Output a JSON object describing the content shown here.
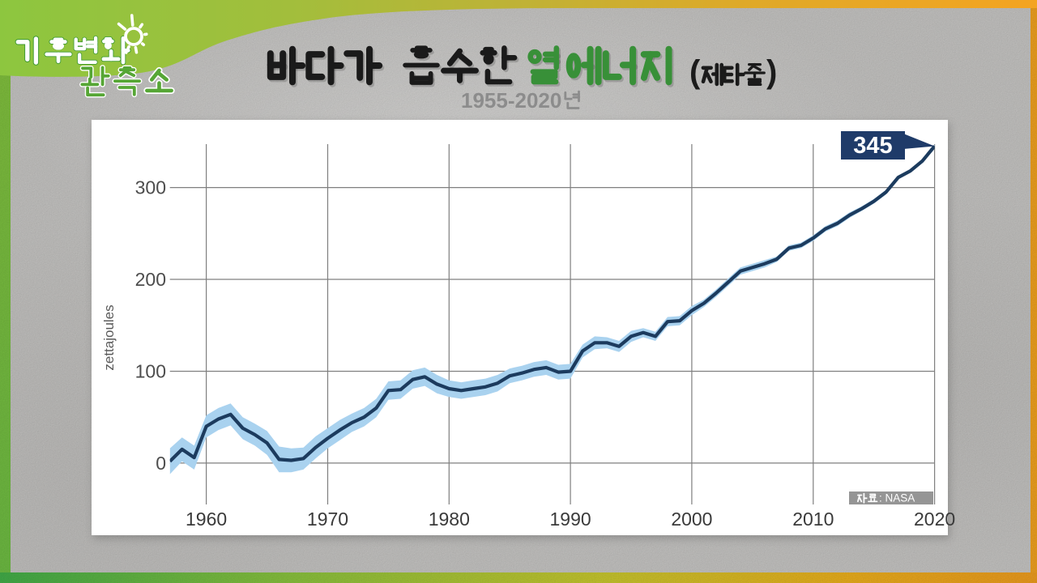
{
  "page": {
    "background_color": "#cac9c7",
    "accent_gradient": [
      "#8cc63f",
      "#f4a522"
    ]
  },
  "logo": {
    "line1": "기후변화",
    "line2": "관측소",
    "icon": "sun-icon",
    "text_color": "#ffffff",
    "accent_color": "#56a635"
  },
  "header": {
    "title_black": "바다가 흡수한",
    "title_green": "열에너지",
    "title_paren_open": "(",
    "title_paren_text": "제타줄",
    "title_paren_close": ")",
    "green_color": "#389038",
    "subtitle_years": "1955-2020",
    "subtitle_suffix": "년",
    "subtitle_color": "#8c8c8c"
  },
  "chart_data": {
    "type": "line",
    "title": "바다가 흡수한 열에너지 (제타줄)",
    "subtitle": "1955-2020년",
    "ylabel": "zettajoules",
    "source_kr": "자료",
    "source_rest": ": NASA",
    "callout": "345",
    "x_ticks": [
      1960,
      1970,
      1980,
      1990,
      2000,
      2010,
      2020
    ],
    "y_ticks": [
      0,
      100,
      200,
      300
    ],
    "xlim": [
      1957,
      2020
    ],
    "ylim": [
      -45,
      347.2
    ],
    "grid": true,
    "line_color": "#1c3b5e",
    "band_color": "#a9d2ef",
    "flag_color": "#1f3b69",
    "years": [
      1957,
      1958,
      1959,
      1960,
      1961,
      1962,
      1963,
      1964,
      1965,
      1966,
      1967,
      1968,
      1969,
      1970,
      1971,
      1972,
      1973,
      1974,
      1975,
      1976,
      1977,
      1978,
      1979,
      1980,
      1981,
      1982,
      1983,
      1984,
      1985,
      1986,
      1987,
      1988,
      1989,
      1990,
      1991,
      1992,
      1993,
      1994,
      1995,
      1996,
      1997,
      1998,
      1999,
      2000,
      2001,
      2002,
      2003,
      2004,
      2005,
      2006,
      2007,
      2008,
      2009,
      2010,
      2011,
      2012,
      2013,
      2014,
      2015,
      2016,
      2017,
      2018,
      2019,
      2020
    ],
    "values": [
      2,
      15,
      6,
      40,
      48,
      53,
      38,
      31,
      22,
      4,
      3,
      5,
      17,
      27,
      36,
      44,
      50,
      60,
      79,
      80,
      91,
      94,
      86,
      81,
      79,
      81,
      83,
      87,
      95,
      98,
      102,
      104,
      99,
      100,
      122,
      131,
      131,
      127,
      138,
      142,
      138,
      154,
      155,
      166,
      174,
      185,
      197,
      209,
      213,
      217,
      222,
      234,
      237,
      245,
      255,
      261,
      270,
      277,
      285,
      295,
      311,
      318,
      329,
      345
    ],
    "band_halfwidth": [
      14,
      13,
      13,
      12,
      12,
      12,
      12,
      12,
      13,
      14,
      13,
      12,
      12,
      11,
      11,
      10,
      10,
      10,
      10,
      10,
      10,
      10,
      10,
      9,
      9,
      9,
      9,
      9,
      8,
      8,
      8,
      8,
      8,
      8,
      7,
      7,
      6,
      6,
      6,
      5,
      5,
      5,
      5,
      5,
      4,
      4,
      4,
      4,
      4,
      4,
      3,
      3,
      3,
      3,
      3,
      3,
      3,
      2.5,
      2.5,
      2.5,
      2,
      2,
      2,
      2
    ]
  }
}
